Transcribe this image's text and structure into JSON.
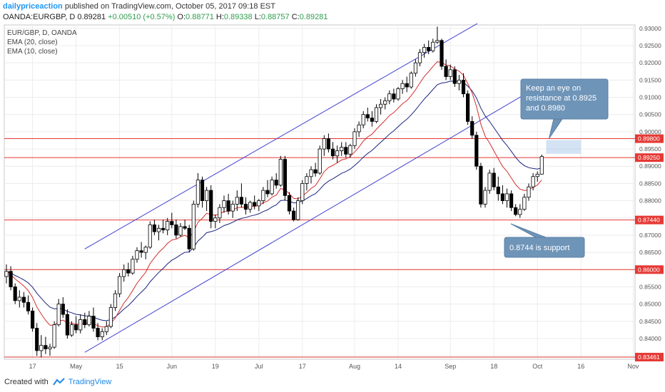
{
  "header": {
    "author": "dailypriceaction",
    "published": " published on TradingView.com, October 05, 2017 09:18 EST"
  },
  "ohlc": {
    "symbol": "OANDA:EURGBP, D",
    "last": "0.89281",
    "change": "+0.00510 (+0.57%)",
    "o_label": "O:",
    "o": "0.88771",
    "h_label": "H:",
    "h": "0.89338",
    "l_label": "L:",
    "l": "0.88757",
    "c_label": "C:",
    "c": "0.89281"
  },
  "footer": {
    "created_with": "Created with",
    "brand": "TradingView"
  },
  "colors": {
    "up": "#ffffff",
    "down": "#000000",
    "ema20": "#1a237e",
    "ema10": "#d32f2f",
    "channel": "#3f3fd0",
    "level": "#e53935",
    "callout_fill": "#6e94b8"
  },
  "chart_data": {
    "type": "candlestick",
    "legend": [
      "EUR/GBP, D, OANDA",
      "EMA (20, close)",
      "EMA (10, close)"
    ],
    "ylim": [
      0.834,
      0.931
    ],
    "x_ticks": [
      {
        "label": "17",
        "i": 6
      },
      {
        "label": "May",
        "i": 16
      },
      {
        "label": "15",
        "i": 26
      },
      {
        "label": "Jun",
        "i": 38
      },
      {
        "label": "19",
        "i": 48
      },
      {
        "label": "Jul",
        "i": 58
      },
      {
        "label": "17",
        "i": 68
      },
      {
        "label": "Aug",
        "i": 80
      },
      {
        "label": "14",
        "i": 90
      },
      {
        "label": "Sep",
        "i": 102
      },
      {
        "label": "18",
        "i": 112
      },
      {
        "label": "Oct",
        "i": 122
      },
      {
        "label": "16",
        "i": 132
      },
      {
        "label": "Nov",
        "i": 144
      }
    ],
    "y_ticks": [
      "0.93000",
      "0.92500",
      "0.92000",
      "0.91500",
      "0.91000",
      "0.90500",
      "0.90000",
      "0.89500",
      "0.89000",
      "0.88500",
      "0.88000",
      "0.87500",
      "0.87000",
      "0.86500",
      "0.86000",
      "0.85500",
      "0.85000",
      "0.84500",
      "0.84000",
      "0.83500"
    ],
    "levels": [
      {
        "label": "0.89800",
        "value": 0.898
      },
      {
        "label": "0.89250",
        "value": 0.8925
      },
      {
        "label": "0.87440",
        "value": 0.8744
      },
      {
        "label": "0.86000",
        "value": 0.86
      },
      {
        "label": "0.83461",
        "value": 0.83461
      }
    ],
    "channel_lines": [
      {
        "i1": 18,
        "v1": 0.866,
        "i2": 109,
        "v2": 0.932
      },
      {
        "i1": 18,
        "v1": 0.836,
        "i2": 122,
        "v2": 0.913
      }
    ],
    "resistance_zone": {
      "i1": 124,
      "i2": 132,
      "v1": 0.8936,
      "v2": 0.8976
    },
    "callouts": [
      {
        "text": "Keep an eye on resistance at 0.8925 and 0.8980"
      },
      {
        "text": "0.8744 is support"
      }
    ],
    "candles": [
      [
        0.858,
        0.8615,
        0.856,
        0.8595
      ],
      [
        0.8595,
        0.861,
        0.854,
        0.855
      ],
      [
        0.855,
        0.856,
        0.85,
        0.851
      ],
      [
        0.851,
        0.854,
        0.849,
        0.852
      ],
      [
        0.852,
        0.8535,
        0.849,
        0.8505
      ],
      [
        0.8505,
        0.8525,
        0.847,
        0.848
      ],
      [
        0.848,
        0.849,
        0.842,
        0.843
      ],
      [
        0.843,
        0.8445,
        0.835,
        0.8365
      ],
      [
        0.8365,
        0.841,
        0.8345,
        0.838
      ],
      [
        0.838,
        0.8405,
        0.8355,
        0.837
      ],
      [
        0.837,
        0.8385,
        0.835,
        0.8375
      ],
      [
        0.8375,
        0.845,
        0.837,
        0.844
      ],
      [
        0.844,
        0.8515,
        0.8435,
        0.85
      ],
      [
        0.85,
        0.852,
        0.846,
        0.847
      ],
      [
        0.847,
        0.8485,
        0.84,
        0.841
      ],
      [
        0.841,
        0.845,
        0.8405,
        0.844
      ],
      [
        0.844,
        0.8465,
        0.8415,
        0.8425
      ],
      [
        0.8425,
        0.847,
        0.8415,
        0.8455
      ],
      [
        0.8455,
        0.8475,
        0.843,
        0.844
      ],
      [
        0.844,
        0.848,
        0.8435,
        0.8465
      ],
      [
        0.8465,
        0.849,
        0.842,
        0.843
      ],
      [
        0.843,
        0.8445,
        0.8395,
        0.8405
      ],
      [
        0.8405,
        0.843,
        0.8395,
        0.842
      ],
      [
        0.842,
        0.845,
        0.841,
        0.8435
      ],
      [
        0.8435,
        0.85,
        0.843,
        0.849
      ],
      [
        0.849,
        0.854,
        0.848,
        0.853
      ],
      [
        0.853,
        0.859,
        0.852,
        0.858
      ],
      [
        0.858,
        0.8615,
        0.8565,
        0.86
      ],
      [
        0.86,
        0.862,
        0.858,
        0.859
      ],
      [
        0.859,
        0.864,
        0.8585,
        0.863
      ],
      [
        0.863,
        0.8665,
        0.862,
        0.8655
      ],
      [
        0.8655,
        0.868,
        0.8635,
        0.865
      ],
      [
        0.865,
        0.867,
        0.863,
        0.8665
      ],
      [
        0.8665,
        0.874,
        0.866,
        0.873
      ],
      [
        0.873,
        0.8745,
        0.87,
        0.871
      ],
      [
        0.871,
        0.873,
        0.8685,
        0.872
      ],
      [
        0.872,
        0.8745,
        0.8705,
        0.8715
      ],
      [
        0.8715,
        0.875,
        0.87,
        0.874
      ],
      [
        0.874,
        0.8765,
        0.872,
        0.873
      ],
      [
        0.873,
        0.8745,
        0.869,
        0.87
      ],
      [
        0.87,
        0.8735,
        0.8695,
        0.8725
      ],
      [
        0.8725,
        0.8745,
        0.8715,
        0.872
      ],
      [
        0.872,
        0.873,
        0.865,
        0.866
      ],
      [
        0.866,
        0.88,
        0.8655,
        0.879
      ],
      [
        0.879,
        0.888,
        0.878,
        0.886
      ],
      [
        0.886,
        0.887,
        0.878,
        0.88
      ],
      [
        0.88,
        0.884,
        0.877,
        0.883
      ],
      [
        0.883,
        0.8845,
        0.872,
        0.874
      ],
      [
        0.874,
        0.876,
        0.872,
        0.875
      ],
      [
        0.875,
        0.879,
        0.8735,
        0.878
      ],
      [
        0.878,
        0.8815,
        0.8765,
        0.88
      ],
      [
        0.88,
        0.882,
        0.876,
        0.877
      ],
      [
        0.877,
        0.88,
        0.875,
        0.879
      ],
      [
        0.879,
        0.883,
        0.877,
        0.881
      ],
      [
        0.881,
        0.885,
        0.878,
        0.879
      ],
      [
        0.879,
        0.881,
        0.876,
        0.8775
      ],
      [
        0.8775,
        0.88,
        0.8765,
        0.8795
      ],
      [
        0.8795,
        0.8815,
        0.8775,
        0.8785
      ],
      [
        0.8785,
        0.8805,
        0.877,
        0.88
      ],
      [
        0.88,
        0.884,
        0.879,
        0.883
      ],
      [
        0.883,
        0.886,
        0.881,
        0.882
      ],
      [
        0.882,
        0.887,
        0.8815,
        0.886
      ],
      [
        0.886,
        0.888,
        0.8835,
        0.8845
      ],
      [
        0.8845,
        0.893,
        0.884,
        0.892
      ],
      [
        0.892,
        0.893,
        0.88,
        0.8815
      ],
      [
        0.8815,
        0.8825,
        0.876,
        0.877
      ],
      [
        0.877,
        0.878,
        0.874,
        0.8745
      ],
      [
        0.8745,
        0.881,
        0.8742,
        0.88
      ],
      [
        0.88,
        0.886,
        0.879,
        0.885
      ],
      [
        0.885,
        0.888,
        0.883,
        0.887
      ],
      [
        0.887,
        0.89,
        0.885,
        0.889
      ],
      [
        0.889,
        0.891,
        0.887,
        0.888
      ],
      [
        0.888,
        0.896,
        0.8875,
        0.895
      ],
      [
        0.895,
        0.899,
        0.893,
        0.898
      ],
      [
        0.898,
        0.8995,
        0.894,
        0.895
      ],
      [
        0.895,
        0.897,
        0.892,
        0.893
      ],
      [
        0.893,
        0.896,
        0.891,
        0.8945
      ],
      [
        0.8945,
        0.897,
        0.893,
        0.8955
      ],
      [
        0.8955,
        0.897,
        0.8925,
        0.8935
      ],
      [
        0.8935,
        0.8965,
        0.8925,
        0.896
      ],
      [
        0.896,
        0.901,
        0.895,
        0.9
      ],
      [
        0.9,
        0.903,
        0.8985,
        0.902
      ],
      [
        0.902,
        0.906,
        0.901,
        0.905
      ],
      [
        0.905,
        0.907,
        0.903,
        0.904
      ],
      [
        0.904,
        0.906,
        0.9015,
        0.903
      ],
      [
        0.903,
        0.908,
        0.9025,
        0.907
      ],
      [
        0.907,
        0.9095,
        0.905,
        0.908
      ],
      [
        0.908,
        0.91,
        0.9065,
        0.909
      ],
      [
        0.909,
        0.912,
        0.908,
        0.911
      ],
      [
        0.911,
        0.9125,
        0.9085,
        0.9095
      ],
      [
        0.9095,
        0.913,
        0.909,
        0.9125
      ],
      [
        0.9125,
        0.915,
        0.911,
        0.914
      ],
      [
        0.914,
        0.916,
        0.9115,
        0.913
      ],
      [
        0.913,
        0.9175,
        0.9125,
        0.917
      ],
      [
        0.917,
        0.921,
        0.916,
        0.92
      ],
      [
        0.92,
        0.924,
        0.919,
        0.923
      ],
      [
        0.923,
        0.9255,
        0.9215,
        0.9245
      ],
      [
        0.9245,
        0.9265,
        0.9225,
        0.9235
      ],
      [
        0.9235,
        0.927,
        0.923,
        0.926
      ],
      [
        0.926,
        0.9305,
        0.9255,
        0.9265
      ],
      [
        0.9265,
        0.927,
        0.918,
        0.919
      ],
      [
        0.919,
        0.921,
        0.915,
        0.916
      ],
      [
        0.916,
        0.9195,
        0.915,
        0.918
      ],
      [
        0.918,
        0.919,
        0.913,
        0.914
      ],
      [
        0.914,
        0.9165,
        0.912,
        0.915
      ],
      [
        0.915,
        0.917,
        0.91,
        0.911
      ],
      [
        0.911,
        0.912,
        0.902,
        0.903
      ],
      [
        0.903,
        0.9045,
        0.898,
        0.899
      ],
      [
        0.899,
        0.9,
        0.889,
        0.89
      ],
      [
        0.89,
        0.891,
        0.878,
        0.879
      ],
      [
        0.879,
        0.884,
        0.878,
        0.883
      ],
      [
        0.883,
        0.889,
        0.882,
        0.888
      ],
      [
        0.888,
        0.8895,
        0.883,
        0.884
      ],
      [
        0.884,
        0.887,
        0.88,
        0.882
      ],
      [
        0.882,
        0.8845,
        0.879,
        0.88
      ],
      [
        0.88,
        0.8835,
        0.878,
        0.882
      ],
      [
        0.882,
        0.883,
        0.877,
        0.878
      ],
      [
        0.878,
        0.879,
        0.8755,
        0.876
      ],
      [
        0.876,
        0.879,
        0.875,
        0.8775
      ],
      [
        0.8775,
        0.882,
        0.877,
        0.881
      ],
      [
        0.881,
        0.885,
        0.88,
        0.884
      ],
      [
        0.884,
        0.888,
        0.883,
        0.887
      ],
      [
        0.887,
        0.8885,
        0.8855,
        0.8877
      ],
      [
        0.88771,
        0.89338,
        0.88757,
        0.89281
      ]
    ]
  }
}
